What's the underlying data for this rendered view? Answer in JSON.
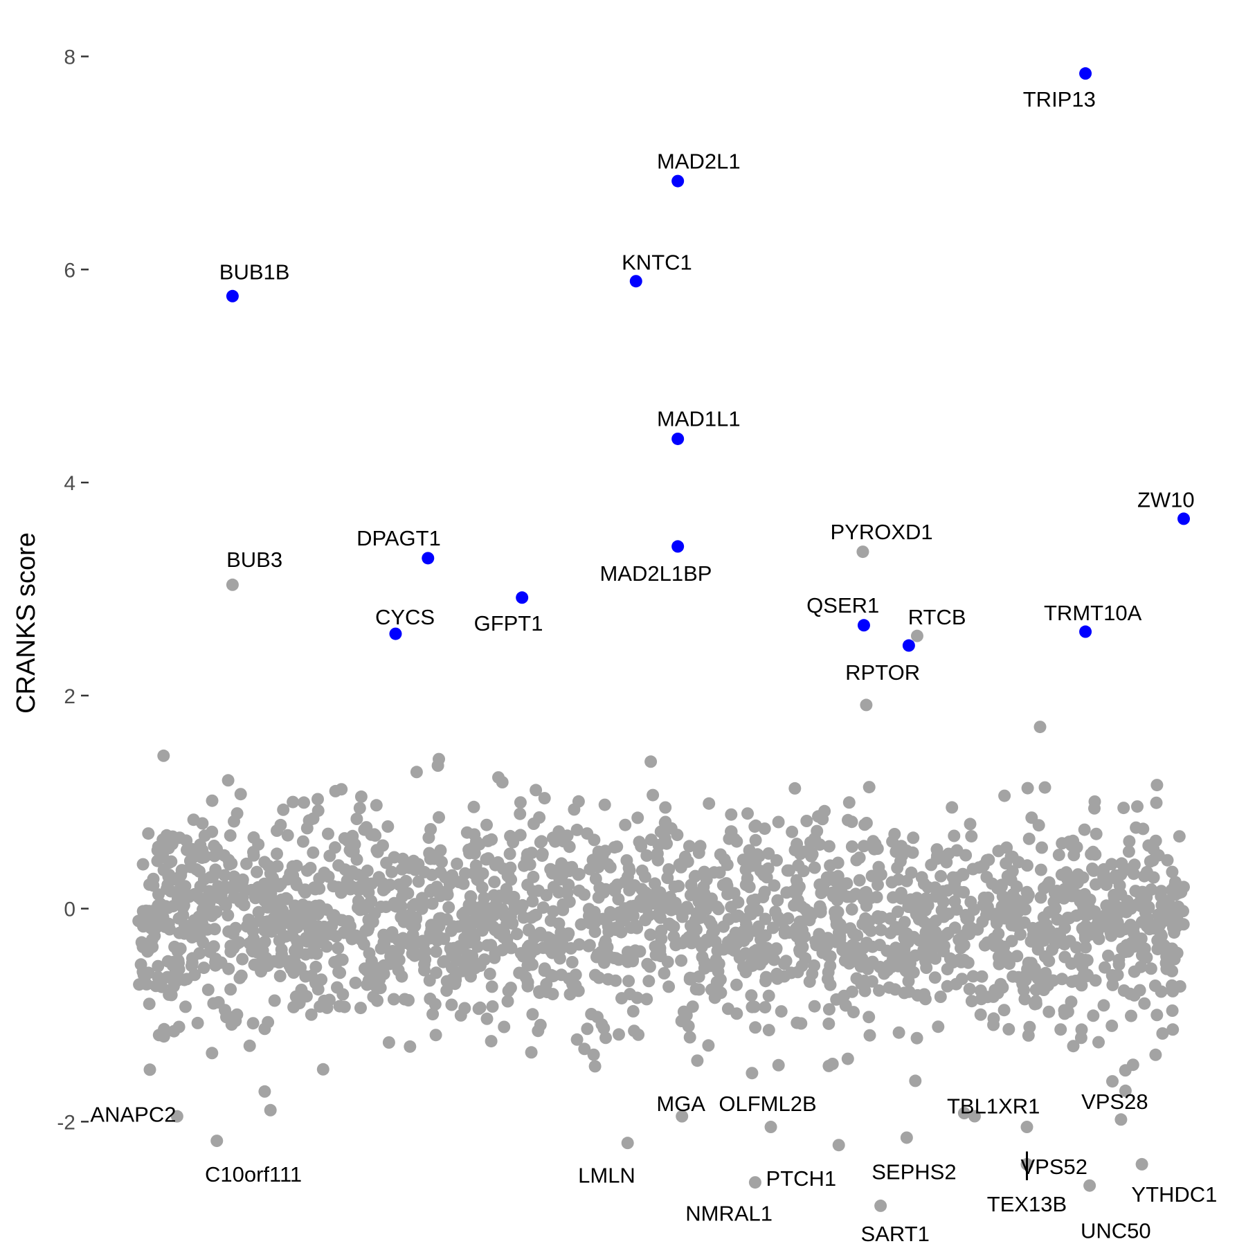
{
  "chart_data": {
    "type": "scatter",
    "ylabel": "CRANKS score",
    "xlabel": "",
    "ylim": [
      -2.55,
      8.27
    ],
    "yticks": [
      -2,
      0,
      2,
      4,
      6,
      8
    ],
    "grid": false,
    "colors": {
      "highlight": "#0000ff",
      "background": "#a3a3a3",
      "text": "#000000"
    },
    "background_cloud": {
      "description_count": 18000,
      "y_mean": -0.1,
      "y_sd": 0.55
    },
    "series": [
      {
        "highlight": true,
        "points": [
          {
            "x": 0.09,
            "y": 5.75,
            "label": "BUB1B"
          },
          {
            "x": 0.246,
            "y": 2.58,
            "label": "CYCS"
          },
          {
            "x": 0.277,
            "y": 3.29,
            "label": "DPAGT1"
          },
          {
            "x": 0.367,
            "y": 2.92,
            "label": "GFPT1"
          },
          {
            "x": 0.476,
            "y": 5.89,
            "label": "KNTC1"
          },
          {
            "x": 0.516,
            "y": 6.83,
            "label": "MAD2L1"
          },
          {
            "x": 0.516,
            "y": 4.41,
            "label": "MAD1L1"
          },
          {
            "x": 0.516,
            "y": 3.4,
            "label": "MAD2L1BP"
          },
          {
            "x": 0.694,
            "y": 2.66,
            "label": "QSER1"
          },
          {
            "x": 0.737,
            "y": 2.47,
            "label": "RPTOR"
          },
          {
            "x": 0.906,
            "y": 7.84,
            "label": "TRIP13"
          },
          {
            "x": 0.906,
            "y": 2.6,
            "label": "TRMT10A"
          },
          {
            "x": 1.0,
            "y": 3.66,
            "label": "ZW10"
          }
        ]
      },
      {
        "highlight": false,
        "points": [
          {
            "x": 0.09,
            "y": 3.04,
            "label": "BUB3"
          },
          {
            "x": 0.693,
            "y": 3.35,
            "label": "PYROXD1"
          },
          {
            "x": 0.745,
            "y": 2.56,
            "label": "RTCB"
          },
          {
            "x": 0.037,
            "y": -1.95,
            "label": "ANAPC2"
          },
          {
            "x": 0.075,
            "y": -2.18,
            "label": "C10orf111"
          },
          {
            "x": 0.52,
            "y": -1.95,
            "label": "MGA"
          },
          {
            "x": 0.468,
            "y": -2.2,
            "label": "LMLN"
          },
          {
            "x": 0.59,
            "y": -2.57,
            "label": "NMRAL1"
          },
          {
            "x": 0.605,
            "y": -2.05,
            "label": "OLFML2B"
          },
          {
            "x": 0.67,
            "y": -2.22,
            "label": "PTCH1"
          },
          {
            "x": 0.735,
            "y": -2.15,
            "label": "SEPHS2"
          },
          {
            "x": 0.71,
            "y": -2.79,
            "label": "SART1"
          },
          {
            "x": 0.79,
            "y": -1.92,
            "label": "TBL1XR1"
          },
          {
            "x": 0.85,
            "y": -2.05,
            "label": "VPS52"
          },
          {
            "x": 0.85,
            "y": -2.4,
            "label": "TEX13B"
          },
          {
            "x": 0.94,
            "y": -1.98,
            "label": "VPS28"
          },
          {
            "x": 0.96,
            "y": -2.4,
            "label": "YTHDC1"
          },
          {
            "x": 0.91,
            "y": -2.6,
            "label": "UNC50"
          }
        ]
      }
    ],
    "labels": [
      {
        "text": "BUB1B",
        "at": [
          0.111,
          5.98
        ]
      },
      {
        "text": "BUB3",
        "at": [
          0.111,
          3.28
        ]
      },
      {
        "text": "DPAGT1",
        "at": [
          0.249,
          3.48
        ]
      },
      {
        "text": "CYCS",
        "at": [
          0.255,
          2.74
        ]
      },
      {
        "text": "GFPT1",
        "at": [
          0.354,
          2.68
        ]
      },
      {
        "text": "KNTC1",
        "at": [
          0.496,
          6.07
        ]
      },
      {
        "text": "MAD2L1",
        "at": [
          0.536,
          7.02
        ]
      },
      {
        "text": "MAD1L1",
        "at": [
          0.536,
          4.6
        ]
      },
      {
        "text": "MAD2L1BP",
        "at": [
          0.495,
          3.15
        ]
      },
      {
        "text": "PYROXD1",
        "at": [
          0.711,
          3.54
        ]
      },
      {
        "text": "QSER1",
        "at": [
          0.674,
          2.85
        ]
      },
      {
        "text": "RTCB",
        "at": [
          0.764,
          2.74
        ]
      },
      {
        "text": "RPTOR",
        "at": [
          0.712,
          2.22
        ]
      },
      {
        "text": "TRIP13",
        "at": [
          0.881,
          7.6
        ]
      },
      {
        "text": "TRMT10A",
        "at": [
          0.913,
          2.78
        ]
      },
      {
        "text": "ZW10",
        "at": [
          0.983,
          3.84
        ]
      },
      {
        "text": "ANAPC2",
        "at": [
          -0.005,
          -1.93
        ]
      },
      {
        "text": "C10orf111",
        "at": [
          0.11,
          -2.49
        ]
      },
      {
        "text": "MGA",
        "at": [
          0.519,
          -1.83
        ]
      },
      {
        "text": "LMLN",
        "at": [
          0.448,
          -2.5
        ]
      },
      {
        "text": "NMRAL1",
        "at": [
          0.565,
          -2.86
        ]
      },
      {
        "text": "OLFML2B",
        "at": [
          0.602,
          -1.83
        ]
      },
      {
        "text": "PTCH1",
        "at": [
          0.634,
          -2.53
        ]
      },
      {
        "text": "SEPHS2",
        "at": [
          0.742,
          -2.47
        ]
      },
      {
        "text": "SART1",
        "at": [
          0.724,
          -3.05
        ]
      },
      {
        "text": "TBL1XR1",
        "at": [
          0.818,
          -1.85
        ]
      },
      {
        "text": "VPS52",
        "at": [
          0.876,
          -2.42
        ]
      },
      {
        "text": "TEX13B",
        "at": [
          0.85,
          -2.77
        ]
      },
      {
        "text": "VPS28",
        "at": [
          0.934,
          -1.81
        ]
      },
      {
        "text": "YTHDC1",
        "at": [
          0.991,
          -2.68
        ]
      },
      {
        "text": "UNC50",
        "at": [
          0.935,
          -3.02
        ]
      }
    ]
  }
}
